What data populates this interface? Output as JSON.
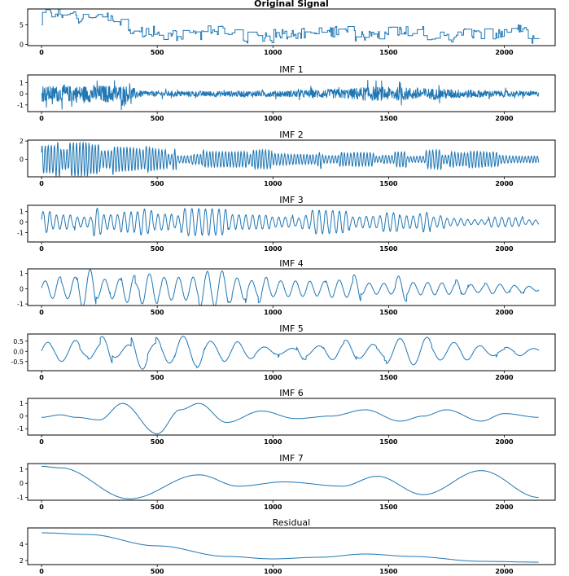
{
  "chart_data": [
    {
      "type": "line",
      "title": "Original Signal",
      "title_bold": true,
      "color": "#1f77b4",
      "xlim": [
        -60,
        2220
      ],
      "ylim": [
        -0.3,
        9
      ],
      "x_ticks": [
        0,
        500,
        1000,
        1500,
        2000
      ],
      "y_ticks": [
        0,
        5
      ],
      "series_kind": "step",
      "segments": [
        [
          0,
          7.5
        ],
        [
          150,
          6.5
        ],
        [
          300,
          6.0
        ],
        [
          360,
          3.0
        ],
        [
          500,
          2.0
        ],
        [
          700,
          3.5
        ],
        [
          850,
          1.5
        ],
        [
          1000,
          2.5
        ],
        [
          1200,
          3.0
        ],
        [
          1350,
          2.0
        ],
        [
          1500,
          3.0
        ],
        [
          1650,
          1.5
        ],
        [
          1800,
          2.5
        ],
        [
          2000,
          3.5
        ],
        [
          2100,
          1.0
        ]
      ],
      "noise": 2.0,
      "y_min": 0.3
    },
    {
      "type": "line",
      "title": "IMF 1",
      "color": "#1f77b4",
      "xlim": [
        -60,
        2220
      ],
      "ylim": [
        -1.6,
        1.7
      ],
      "x_ticks": [
        0,
        500,
        1000,
        1500,
        2000
      ],
      "y_ticks": [
        -1,
        0,
        1
      ],
      "series_kind": "noise",
      "amplitude": 0.9,
      "envelope": [
        [
          0,
          0.9
        ],
        [
          350,
          1.0
        ],
        [
          450,
          0.3
        ],
        [
          1000,
          0.35
        ],
        [
          1300,
          0.55
        ],
        [
          1400,
          0.8
        ],
        [
          2150,
          0.3
        ]
      ]
    },
    {
      "type": "line",
      "title": "IMF 2",
      "color": "#1f77b4",
      "xlim": [
        -60,
        2220
      ],
      "ylim": [
        -1.9,
        2.1
      ],
      "x_ticks": [
        0,
        500,
        1000,
        1500,
        2000
      ],
      "y_ticks": [
        0,
        2
      ],
      "series_kind": "oscillation",
      "period": 14,
      "envelope": [
        [
          0,
          1.5
        ],
        [
          350,
          1.6
        ],
        [
          550,
          0.9
        ],
        [
          1000,
          0.9
        ],
        [
          1500,
          0.7
        ],
        [
          1800,
          1.0
        ],
        [
          2150,
          0.4
        ]
      ]
    },
    {
      "type": "line",
      "title": "IMF 3",
      "color": "#1f77b4",
      "xlim": [
        -60,
        2220
      ],
      "ylim": [
        -1.9,
        1.6
      ],
      "x_ticks": [
        0,
        500,
        1000,
        1500,
        2000
      ],
      "y_ticks": [
        -1,
        0,
        1
      ],
      "series_kind": "oscillation",
      "period": 30,
      "envelope": [
        [
          0,
          1.0
        ],
        [
          600,
          1.1
        ],
        [
          1000,
          0.9
        ],
        [
          1500,
          0.8
        ],
        [
          2150,
          0.4
        ]
      ]
    },
    {
      "type": "line",
      "title": "IMF 4",
      "color": "#1f77b4",
      "xlim": [
        -60,
        2220
      ],
      "ylim": [
        -1.1,
        1.3
      ],
      "x_ticks": [
        0,
        500,
        1000,
        1500,
        2000
      ],
      "y_ticks": [
        -1,
        0,
        1
      ],
      "series_kind": "oscillation",
      "period": 65,
      "envelope": [
        [
          0,
          0.5
        ],
        [
          200,
          1.1
        ],
        [
          500,
          0.9
        ],
        [
          1000,
          1.0
        ],
        [
          1300,
          0.9
        ],
        [
          1700,
          0.8
        ],
        [
          2150,
          0.3
        ]
      ]
    },
    {
      "type": "line",
      "title": "IMF 5",
      "color": "#1f77b4",
      "xlim": [
        -60,
        2220
      ],
      "ylim": [
        -0.95,
        0.85
      ],
      "x_ticks": [
        0,
        500,
        1000,
        1500,
        2000
      ],
      "y_ticks": [
        -0.5,
        0.0,
        0.5
      ],
      "series_kind": "oscillation",
      "period": 120,
      "envelope": [
        [
          0,
          0.45
        ],
        [
          500,
          0.8
        ],
        [
          700,
          0.75
        ],
        [
          1000,
          0.3
        ],
        [
          1400,
          0.5
        ],
        [
          1800,
          0.6
        ],
        [
          2150,
          0.1
        ]
      ]
    },
    {
      "type": "line",
      "title": "IMF 6",
      "color": "#1f77b4",
      "xlim": [
        -60,
        2220
      ],
      "ylim": [
        -1.5,
        1.4
      ],
      "x_ticks": [
        0,
        500,
        1000,
        1500,
        2000
      ],
      "y_ticks": [
        -1,
        0,
        1
      ],
      "series_kind": "curve",
      "points": [
        [
          0,
          -0.1
        ],
        [
          80,
          0.1
        ],
        [
          150,
          -0.1
        ],
        [
          250,
          -0.3
        ],
        [
          350,
          1.0
        ],
        [
          500,
          -1.4
        ],
        [
          600,
          0.5
        ],
        [
          680,
          1.0
        ],
        [
          800,
          -0.5
        ],
        [
          950,
          0.4
        ],
        [
          1100,
          -0.2
        ],
        [
          1250,
          0.0
        ],
        [
          1400,
          0.5
        ],
        [
          1550,
          -0.4
        ],
        [
          1650,
          0.0
        ],
        [
          1750,
          0.5
        ],
        [
          1900,
          -0.4
        ],
        [
          2000,
          0.2
        ],
        [
          2150,
          -0.1
        ]
      ]
    },
    {
      "type": "line",
      "title": "IMF 7",
      "color": "#1f77b4",
      "xlim": [
        -60,
        2220
      ],
      "ylim": [
        -1.2,
        1.4
      ],
      "x_ticks": [
        0,
        500,
        1000,
        1500,
        2000
      ],
      "y_ticks": [
        -1,
        0,
        1
      ],
      "series_kind": "curve",
      "points": [
        [
          0,
          1.2
        ],
        [
          80,
          1.1
        ],
        [
          380,
          -1.1
        ],
        [
          680,
          0.6
        ],
        [
          850,
          -0.2
        ],
        [
          1050,
          0.1
        ],
        [
          1300,
          -0.2
        ],
        [
          1450,
          0.5
        ],
        [
          1650,
          -0.8
        ],
        [
          1900,
          0.9
        ],
        [
          2150,
          -1.0
        ]
      ]
    },
    {
      "type": "line",
      "title": "Residual",
      "color": "#1f77b4",
      "xlim": [
        -60,
        2220
      ],
      "ylim": [
        1.5,
        6.0
      ],
      "x_ticks": [
        0,
        500,
        1000,
        1500,
        2000
      ],
      "y_ticks": [
        2,
        4
      ],
      "series_kind": "curve",
      "points": [
        [
          0,
          5.4
        ],
        [
          200,
          5.2
        ],
        [
          500,
          3.8
        ],
        [
          800,
          2.5
        ],
        [
          1000,
          2.2
        ],
        [
          1200,
          2.4
        ],
        [
          1400,
          2.8
        ],
        [
          1600,
          2.5
        ],
        [
          1900,
          1.9
        ],
        [
          2150,
          1.8
        ]
      ]
    }
  ]
}
